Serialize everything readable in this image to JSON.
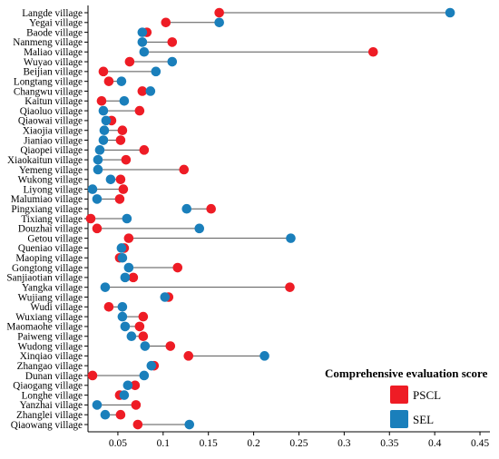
{
  "chart_data": {
    "type": "dumbbell",
    "legend": {
      "title": "Comprehensive evaluation score",
      "placement": "right",
      "entries": [
        {
          "name": "PSCL",
          "color": "#ee1c25"
        },
        {
          "name": "SEL",
          "color": "#1a7fbb"
        }
      ]
    },
    "x_ticks": [
      "0.05",
      "0.1",
      "0.15",
      "0.2",
      "0.25",
      "0.3",
      "0.35",
      "0.4",
      "0.45"
    ],
    "xlim": [
      0.017,
      0.461
    ],
    "grid": false,
    "connector_color": "#555555",
    "villages": [
      "Langde village",
      "Yegai village",
      "Baode village",
      "Nanmeng village",
      "Maliao village",
      "Wuyao village",
      "Beijian village",
      "Longtang village",
      "Changwu village",
      "Kaitun village",
      "Qiaoluo village",
      "Qiaowai village",
      "Xiaojia village",
      "Jianiao village",
      "Qiaopei village",
      "Xiaokaitun village",
      "Yemeng village",
      "Wukong village",
      "Liyong village",
      "Malumiao village",
      "Pingxiang village",
      "Tixiang village",
      "Douzhai village",
      "Getou village",
      "Queniao village",
      "Maoping village",
      "Gongtong village",
      "Sanjiaotian village",
      "Yangka village",
      "Wujiang village",
      "Wudi village",
      "Wuxiang village",
      "Maomaohe village",
      "Paiweng village",
      "Wudong village",
      "Xinqiao village",
      "Zhangao village",
      "Dunan village",
      "Qiaogang village",
      "Longhe village",
      "Yanzhai village",
      "Zhanglei village",
      "Qiaowang village"
    ],
    "series": [
      {
        "name": "PSCL",
        "values": [
          0.162,
          0.103,
          0.082,
          0.11,
          0.332,
          0.063,
          0.034,
          0.04,
          0.077,
          0.032,
          0.074,
          0.043,
          0.055,
          0.053,
          0.079,
          0.059,
          0.123,
          0.053,
          0.056,
          0.052,
          0.153,
          0.02,
          0.027,
          0.062,
          0.057,
          0.052,
          0.116,
          0.067,
          0.24,
          0.106,
          0.04,
          0.078,
          0.074,
          0.078,
          0.108,
          0.128,
          0.09,
          0.022,
          0.069,
          0.052,
          0.07,
          0.053,
          0.072
        ]
      },
      {
        "name": "SEL",
        "values": [
          0.417,
          0.162,
          0.077,
          0.077,
          0.079,
          0.11,
          0.092,
          0.054,
          0.086,
          0.057,
          0.034,
          0.037,
          0.035,
          0.034,
          0.03,
          0.028,
          0.028,
          0.042,
          0.022,
          0.027,
          0.126,
          0.06,
          0.14,
          0.241,
          0.054,
          0.055,
          0.062,
          0.058,
          0.036,
          0.102,
          0.055,
          0.055,
          0.058,
          0.065,
          0.08,
          0.212,
          0.087,
          0.079,
          0.061,
          0.057,
          0.027,
          0.036,
          0.129
        ]
      }
    ]
  }
}
